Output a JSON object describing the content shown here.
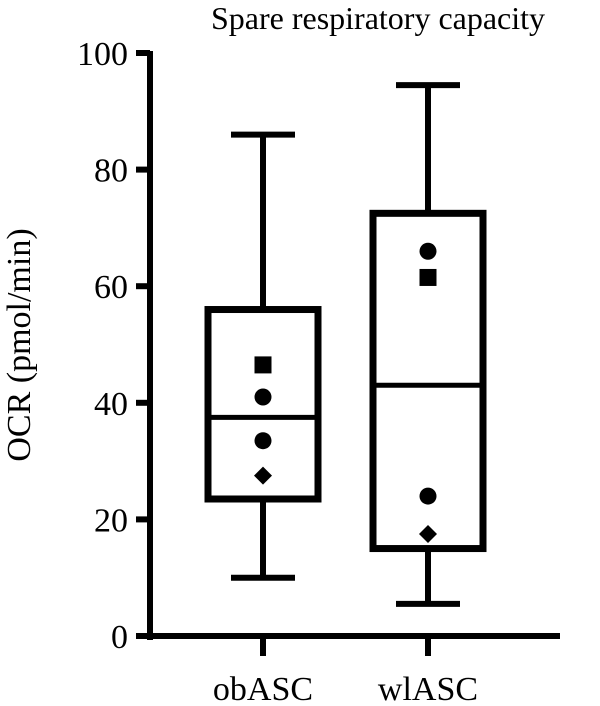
{
  "chart_data": {
    "type": "box",
    "title": "Spare respiratory capacity",
    "xlabel": "",
    "ylabel": "OCR (pmol/min)",
    "ylim": [
      0,
      100
    ],
    "yticks": [
      "0",
      "20",
      "40",
      "60",
      "80",
      "100"
    ],
    "categories": [
      "obASC",
      "wlASC"
    ],
    "boxes": [
      {
        "category": "obASC",
        "min": 10,
        "q1": 23.5,
        "median": 37.5,
        "q3": 56,
        "max": 86,
        "points": [
          {
            "y": 46.5,
            "marker": "square"
          },
          {
            "y": 41,
            "marker": "circle"
          },
          {
            "y": 33.5,
            "marker": "circle"
          },
          {
            "y": 27.5,
            "marker": "diamond"
          }
        ]
      },
      {
        "category": "wlASC",
        "min": 5.5,
        "q1": 15,
        "median": 43,
        "q3": 72.5,
        "max": 94.5,
        "points": [
          {
            "y": 66,
            "marker": "circle"
          },
          {
            "y": 61.5,
            "marker": "square"
          },
          {
            "y": 24,
            "marker": "circle"
          },
          {
            "y": 17.5,
            "marker": "diamond"
          }
        ]
      }
    ],
    "grid": false,
    "color": "#000000"
  }
}
